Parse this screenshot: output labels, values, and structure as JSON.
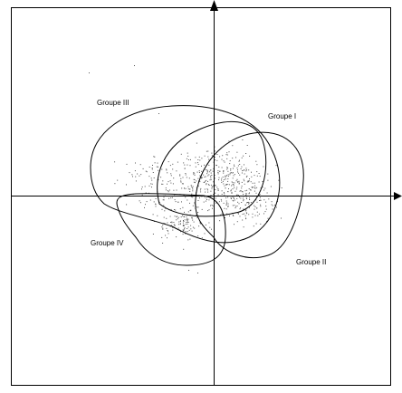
{
  "chart_data": {
    "type": "scatter",
    "title": "",
    "xlabel": "",
    "ylabel": "",
    "axes": {
      "arrows": true,
      "ticks": false,
      "grid": false
    },
    "groups": [
      {
        "name": "Groupe I"
      },
      {
        "name": "Groupe II"
      },
      {
        "name": "Groupe III"
      },
      {
        "name": "Groupe IV"
      }
    ],
    "colors": {
      "ink": "#000000",
      "background": "#ffffff"
    }
  }
}
